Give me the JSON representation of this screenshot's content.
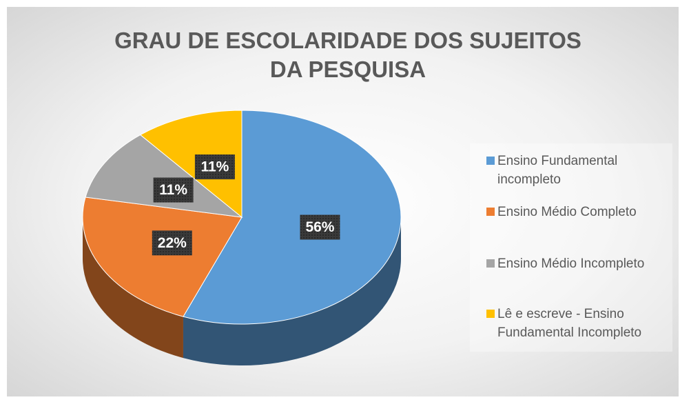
{
  "chart_data": {
    "type": "pie",
    "title": "GRAU DE ESCOLARIDADE DOS SUJEITOS DA PESQUISA",
    "categories": [
      "Ensino Fundamental incompleto",
      "Ensino Médio Completo",
      "Ensino Médio Incompleto",
      "Lê e escreve - Ensino Fundamental Incompleto"
    ],
    "values": [
      56,
      22,
      11,
      11
    ],
    "value_labels": [
      "56%",
      "22%",
      "11%",
      "11%"
    ],
    "colors": [
      "#5b9bd5",
      "#ed7d31",
      "#a5a5a5",
      "#ffc000"
    ],
    "legend": "right"
  }
}
